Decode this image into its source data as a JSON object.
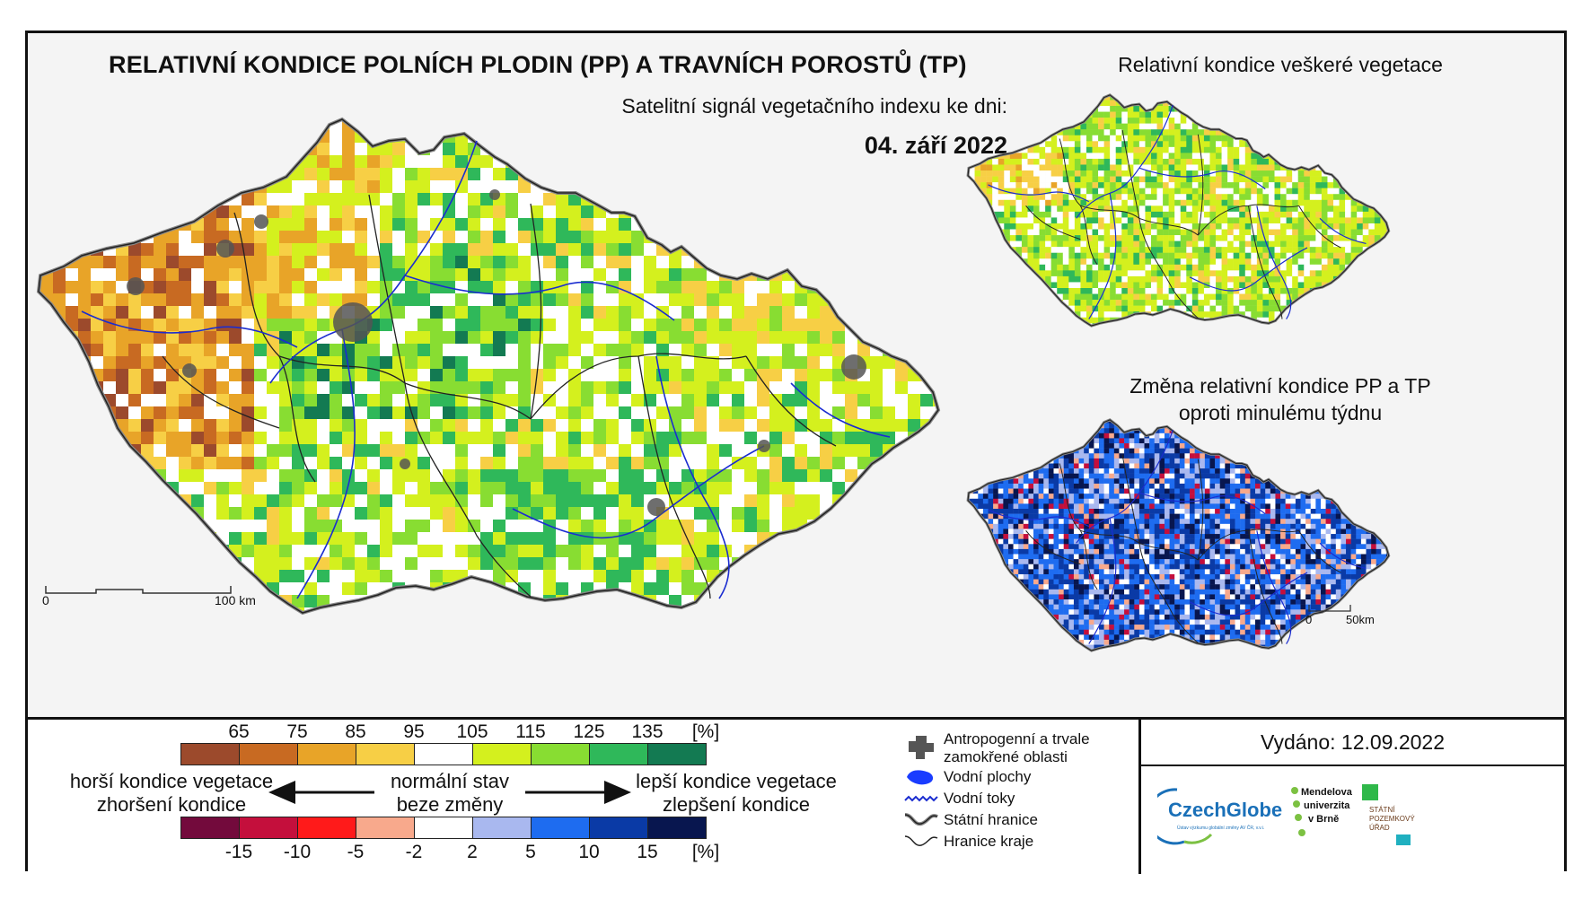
{
  "main": {
    "title": "RELATIVNÍ KONDICE POLNÍCH PLODIN (PP) A TRAVNÍCH POROSTŮ (TP)",
    "subtitle": "Satelitní signál vegetačního indexu ke dni:",
    "date": "04. září 2022",
    "scale_zero": "0",
    "scale_end": "100 km"
  },
  "inset_top": {
    "title": "Relativní kondice veškeré vegetace"
  },
  "inset_bottom": {
    "title_line1": "Změna relativní kondice PP a TP",
    "title_line2": "oproti minulému týdnu",
    "scale_zero": "0",
    "scale_end": "50km"
  },
  "legend": {
    "condition_ticks": [
      "65",
      "75",
      "85",
      "95",
      "105",
      "115",
      "125",
      "135",
      "[%]"
    ],
    "condition_colors": [
      "#9c4a2c",
      "#c86a22",
      "#e8a428",
      "#f7cf45",
      "#ffffff",
      "#d4f01e",
      "#88dd32",
      "#2fb85a",
      "#137a52"
    ],
    "change_ticks": [
      "-15",
      "-10",
      "-5",
      "-2",
      "2",
      "5",
      "10",
      "15",
      "[%]"
    ],
    "change_colors": [
      "#730a3c",
      "#c40f3c",
      "#ff1a1a",
      "#f8a98c",
      "#ffffff",
      "#a9b8ef",
      "#1e6cf0",
      "#0a3aa6",
      "#08164f"
    ],
    "left_line1": "horší kondice vegetace",
    "left_line2": "zhoršení kondice",
    "center_line1": "normální stav",
    "center_line2": "beze změny",
    "right_line1": "lepší kondice vegetace",
    "right_line2": "zlepšení kondice"
  },
  "map_key": {
    "anthropogenic_line1": "Antropogenní a trvale",
    "anthropogenic_line2": "zamokřené oblasti",
    "water_areas": "Vodní plochy",
    "water_streams": "Vodní toky",
    "state_border": "Státní hranice",
    "region_border": "Hranice kraje"
  },
  "issued": "Vydáno: 12.09.2022",
  "logos": {
    "czechglobe": "CzechGlobe",
    "czechglobe_sub": "Ústav výzkumu globální změny AV ČR, v.v.i.",
    "mendel_line1": "Mendelova",
    "mendel_line2": "univerzita",
    "mendel_line3": "v Brně",
    "spu_line1": "STÁTNÍ",
    "spu_line2": "POZEMKOVÝ",
    "spu_line3": "ÚŘAD"
  }
}
